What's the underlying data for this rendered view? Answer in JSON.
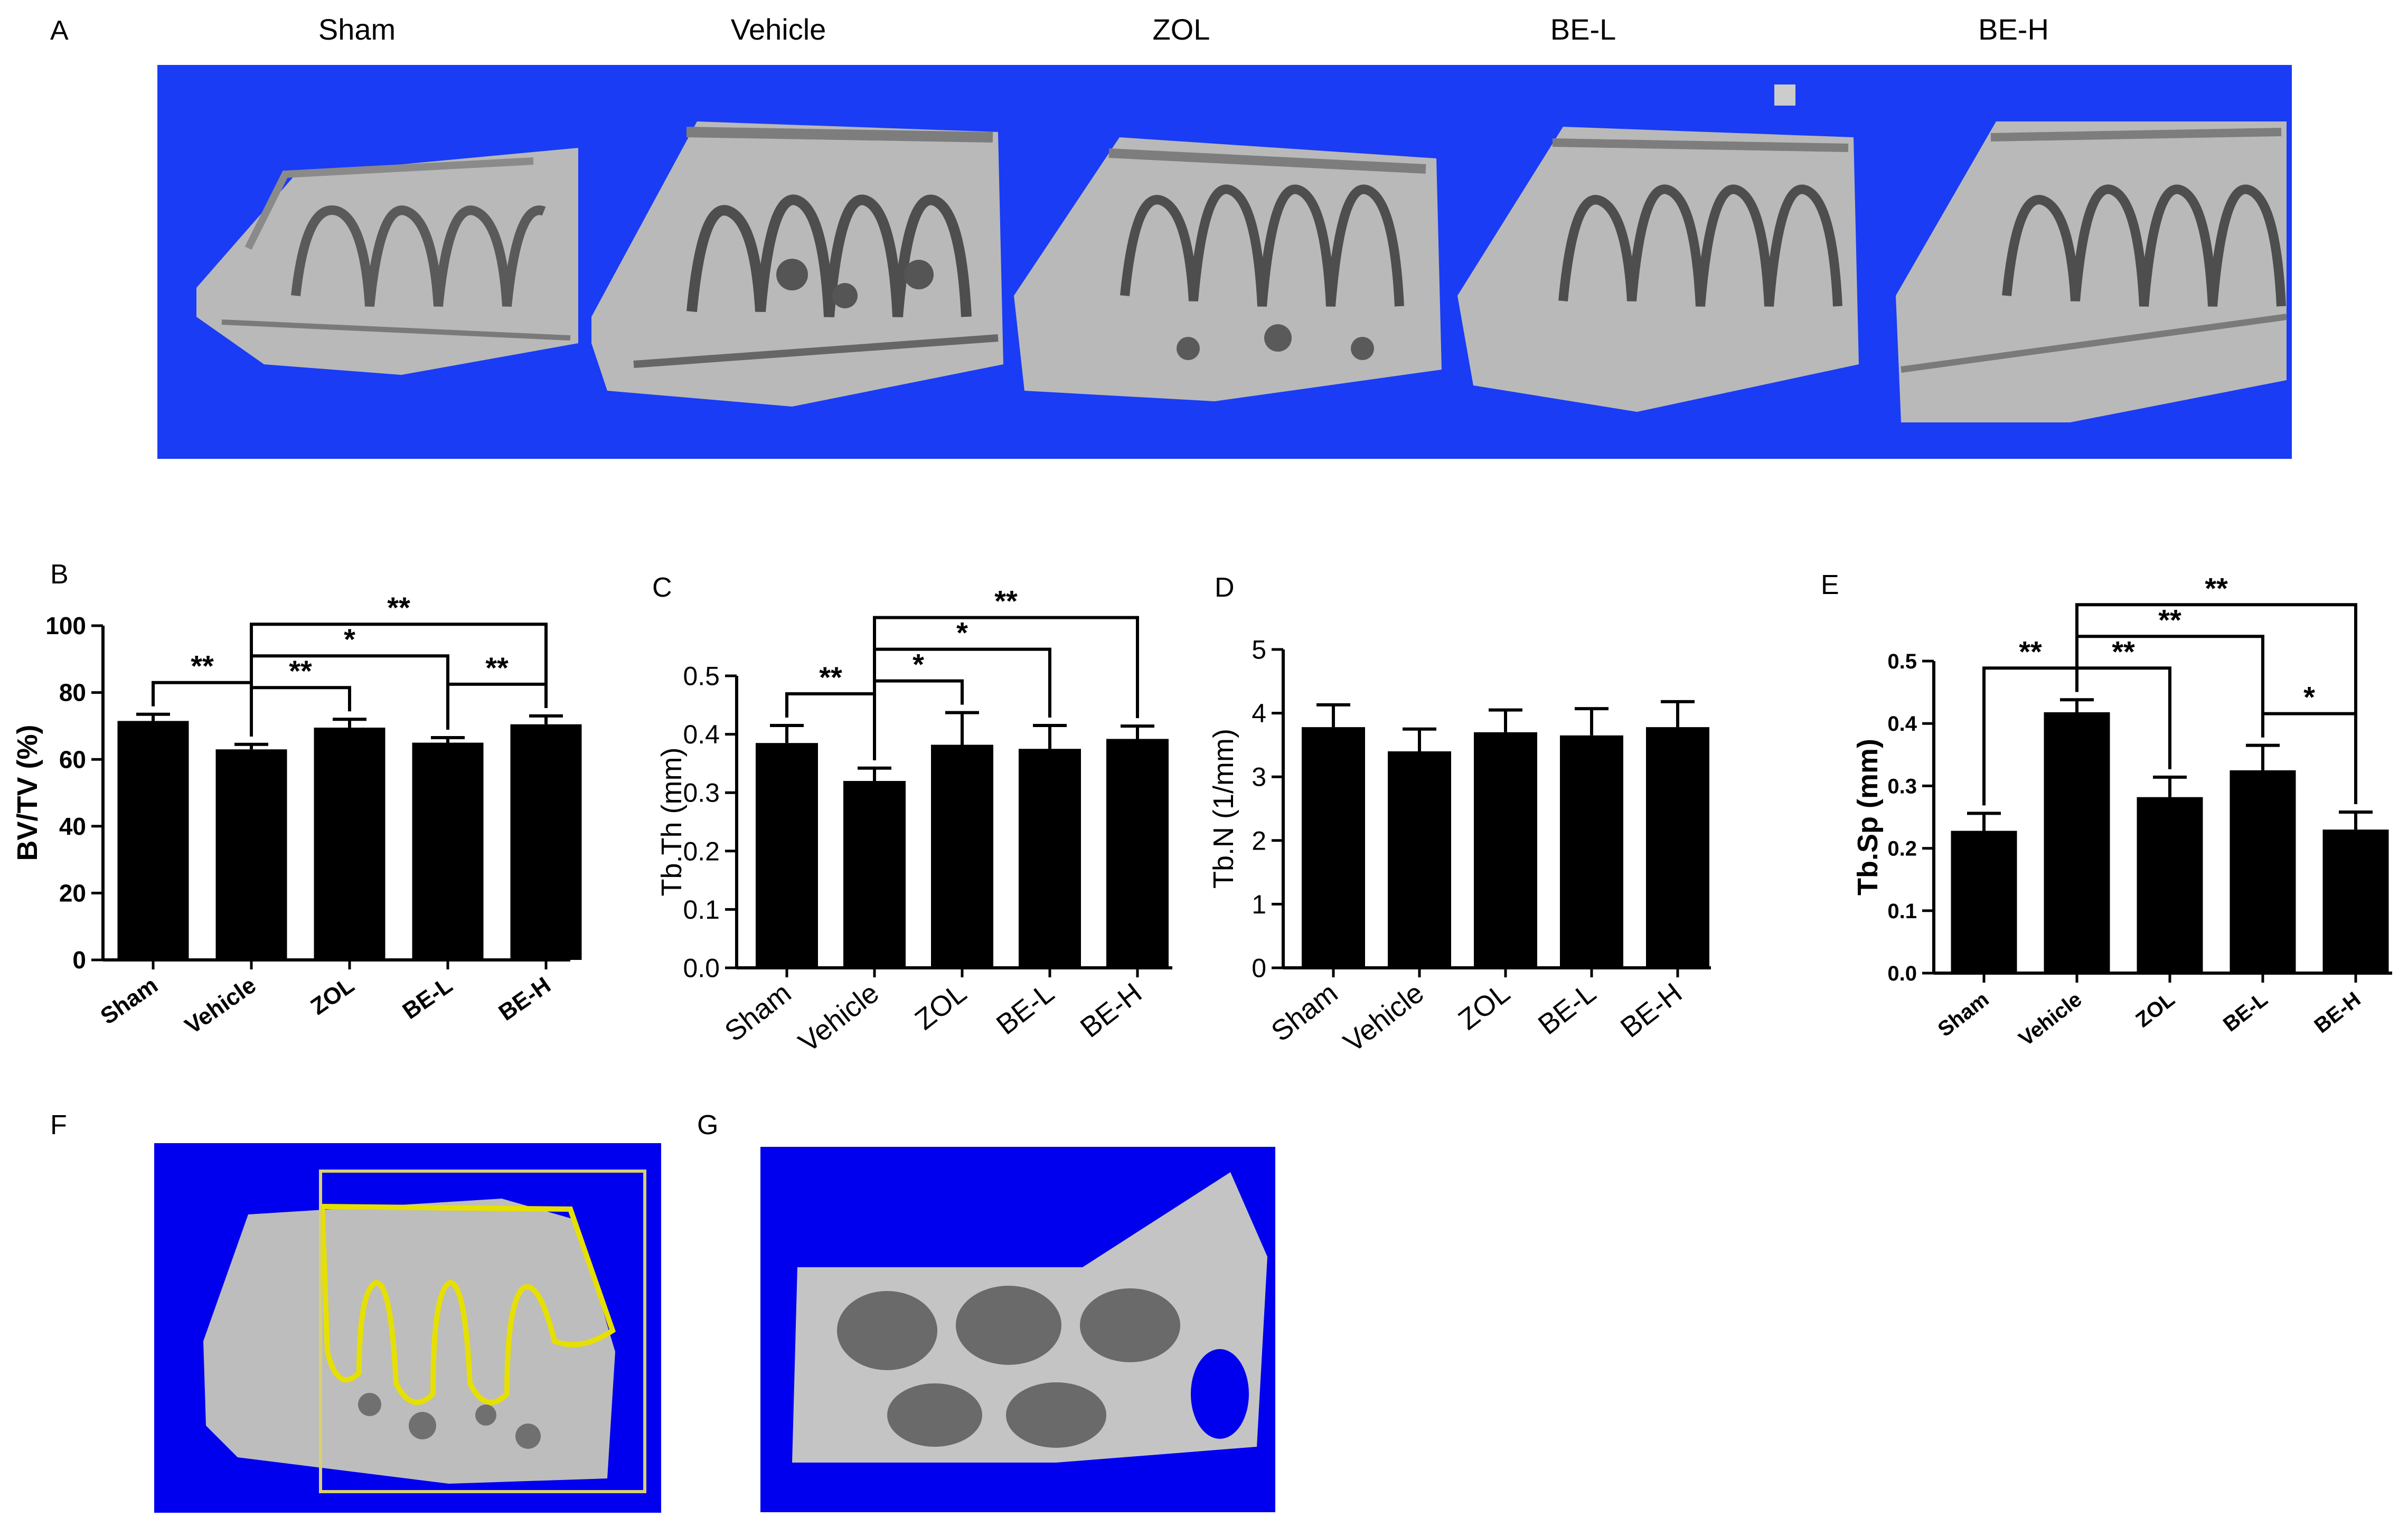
{
  "panels": {
    "a": {
      "letter": "A",
      "columns": [
        "Sham",
        "Vehicle",
        "ZOL",
        "BE-L",
        "BE-H"
      ],
      "background_color": "#1a3cf5",
      "bone_color": "#bdbdbd"
    },
    "f": {
      "letter": "F",
      "background_color": "#0000ee",
      "roi_color": "#e6e000"
    },
    "g": {
      "letter": "G",
      "background_color": "#0000ee"
    }
  },
  "chart_data": [
    {
      "type": "bar",
      "letter": "B",
      "categories": [
        "Sham",
        "Vehicle",
        "ZOL",
        "BE-L",
        "BE-H"
      ],
      "values": [
        71.5,
        63.0,
        69.5,
        65.0,
        70.5
      ],
      "errors": [
        2.0,
        1.5,
        2.5,
        1.5,
        2.5
      ],
      "ylabel": "BV/TV (%)",
      "ylim": [
        0,
        100
      ],
      "yticks": [
        "0",
        "20",
        "40",
        "60",
        "80",
        "100"
      ],
      "tick_values": [
        0,
        20,
        40,
        60,
        80,
        100
      ],
      "bold_labels": true,
      "significance": [
        {
          "from": 0,
          "to": 1,
          "label": "**"
        },
        {
          "from": 1,
          "to": 2,
          "label": "**"
        },
        {
          "from": 1,
          "to": 3,
          "label": "*"
        },
        {
          "from": 1,
          "to": 4,
          "label": "**"
        },
        {
          "from": 3,
          "to": 4,
          "label": "**"
        }
      ]
    },
    {
      "type": "bar",
      "letter": "C",
      "categories": [
        "Sham",
        "Vehicle",
        "ZOL",
        "BE-L",
        "BE-H"
      ],
      "values": [
        0.385,
        0.32,
        0.382,
        0.375,
        0.392
      ],
      "errors": [
        0.03,
        0.022,
        0.055,
        0.04,
        0.022
      ],
      "ylabel": "Tb.Th (mm)",
      "ylim": [
        0,
        0.5
      ],
      "yticks": [
        "0.0",
        "0.1",
        "0.2",
        "0.3",
        "0.4",
        "0.5"
      ],
      "tick_values": [
        0,
        0.1,
        0.2,
        0.3,
        0.4,
        0.5
      ],
      "bold_labels": false,
      "significance": [
        {
          "from": 0,
          "to": 1,
          "label": "**"
        },
        {
          "from": 1,
          "to": 2,
          "label": "*"
        },
        {
          "from": 1,
          "to": 3,
          "label": "*"
        },
        {
          "from": 1,
          "to": 4,
          "label": "**"
        }
      ]
    },
    {
      "type": "bar",
      "letter": "D",
      "categories": [
        "Sham",
        "Vehicle",
        "ZOL",
        "BE-L",
        "BE-H"
      ],
      "values": [
        3.78,
        3.4,
        3.7,
        3.65,
        3.78
      ],
      "errors": [
        0.35,
        0.35,
        0.35,
        0.42,
        0.4
      ],
      "ylabel": "Tb.N (1/mm)",
      "ylim": [
        0,
        5
      ],
      "yticks": [
        "0",
        "1",
        "2",
        "3",
        "4",
        "5"
      ],
      "tick_values": [
        0,
        1,
        2,
        3,
        4,
        5
      ],
      "bold_labels": false,
      "significance": []
    },
    {
      "type": "bar",
      "letter": "E",
      "categories": [
        "Sham",
        "Vehicle",
        "ZOL",
        "BE-L",
        "BE-H"
      ],
      "values": [
        0.228,
        0.418,
        0.282,
        0.325,
        0.23
      ],
      "errors": [
        0.028,
        0.02,
        0.032,
        0.04,
        0.028
      ],
      "ylabel": "Tb.Sp (mm)",
      "ylim": [
        0,
        0.5
      ],
      "yticks": [
        "0.0",
        "0.1",
        "0.2",
        "0.3",
        "0.4",
        "0.5"
      ],
      "tick_values": [
        0,
        0.1,
        0.2,
        0.3,
        0.4,
        0.5
      ],
      "bold_labels": true,
      "significance": [
        {
          "from": 0,
          "to": 1,
          "label": "**"
        },
        {
          "from": 1,
          "to": 2,
          "label": "**"
        },
        {
          "from": 1,
          "to": 3,
          "label": "**"
        },
        {
          "from": 1,
          "to": 4,
          "label": "**"
        },
        {
          "from": 3,
          "to": 4,
          "label": "*"
        }
      ]
    }
  ]
}
